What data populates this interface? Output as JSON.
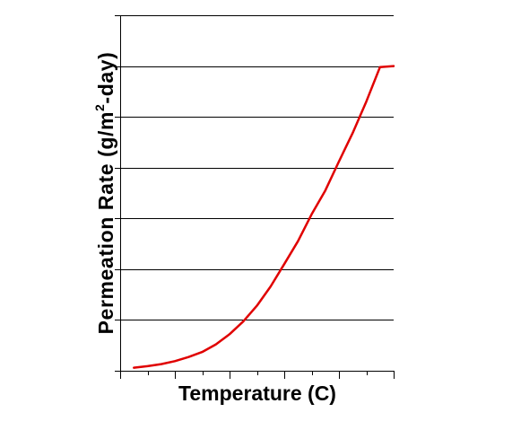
{
  "chart_data": {
    "type": "line",
    "title": "",
    "xlabel": "Temperature (C)",
    "ylabel_main": "Permeation Rate (g/m",
    "ylabel_sup": "2",
    "ylabel_tail": "-day)",
    "grid": true,
    "legend": "none",
    "xlim": [
      0,
      100
    ],
    "ylim": [
      0,
      7
    ],
    "x_ticks": [
      0,
      10,
      20,
      30,
      40,
      50,
      60,
      70,
      80,
      90,
      100
    ],
    "y_ticks": [
      0,
      1,
      2,
      3,
      4,
      5,
      6,
      7
    ],
    "series": [
      {
        "color": "#e00000",
        "x": [
          5,
          10,
          15,
          20,
          25,
          30,
          35,
          40,
          45,
          50,
          55,
          60,
          65,
          70,
          75,
          80,
          85,
          90,
          95,
          100
        ],
        "y": [
          0.06,
          0.09,
          0.13,
          0.19,
          0.27,
          0.37,
          0.52,
          0.72,
          0.97,
          1.28,
          1.66,
          2.1,
          2.55,
          3.08,
          3.55,
          4.12,
          4.68,
          5.3,
          5.98,
          6.0
        ]
      }
    ]
  }
}
